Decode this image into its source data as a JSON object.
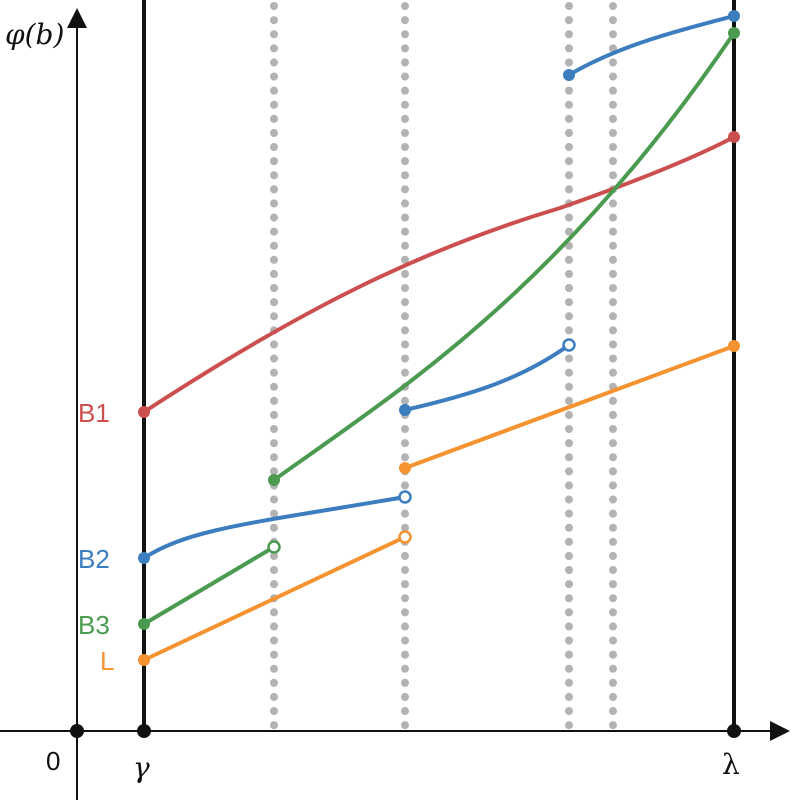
{
  "labels": {
    "y_axis": "φ(b)",
    "origin": "0",
    "gamma": "γ",
    "lambda": "λ",
    "b1": "B1",
    "b2": "B2",
    "b3": "B3",
    "l": "L"
  },
  "colors": {
    "b1": "#cc4f4f",
    "b2": "#3b7dbf",
    "b3": "#4a9a4f",
    "l": "#f59331",
    "axis": "#111111",
    "divider": "#b3b3b3"
  },
  "curves": [
    {
      "name": "B1",
      "color_key": "b1"
    },
    {
      "name": "B2",
      "color_key": "b2"
    },
    {
      "name": "B3",
      "color_key": "b3"
    },
    {
      "name": "L",
      "color_key": "l"
    }
  ]
}
